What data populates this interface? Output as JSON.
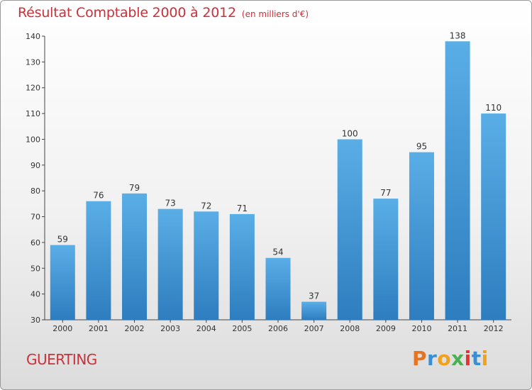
{
  "header": {
    "title": "Résultat Comptable 2000 à 2012",
    "subtitle": "(en milliers d'€)"
  },
  "footer": {
    "commune": "GUERTING",
    "brand": "Proxiti"
  },
  "colors": {
    "accent": "#c8323a",
    "bar_top": "#5aaee6",
    "bar_bottom": "#2e7dbf"
  },
  "chart_data": {
    "type": "bar",
    "title": "Résultat Comptable 2000 à 2012",
    "subtitle": "(en milliers d'€)",
    "categories": [
      "2000",
      "2001",
      "2002",
      "2003",
      "2004",
      "2005",
      "2006",
      "2007",
      "2008",
      "2009",
      "2010",
      "2011",
      "2012"
    ],
    "values": [
      59,
      76,
      79,
      73,
      72,
      71,
      54,
      37,
      100,
      77,
      95,
      138,
      110
    ],
    "yticks": [
      30,
      40,
      50,
      60,
      70,
      80,
      90,
      100,
      110,
      120,
      130,
      140
    ],
    "ylim": [
      30,
      140
    ],
    "grid": false,
    "data_labels": true
  }
}
